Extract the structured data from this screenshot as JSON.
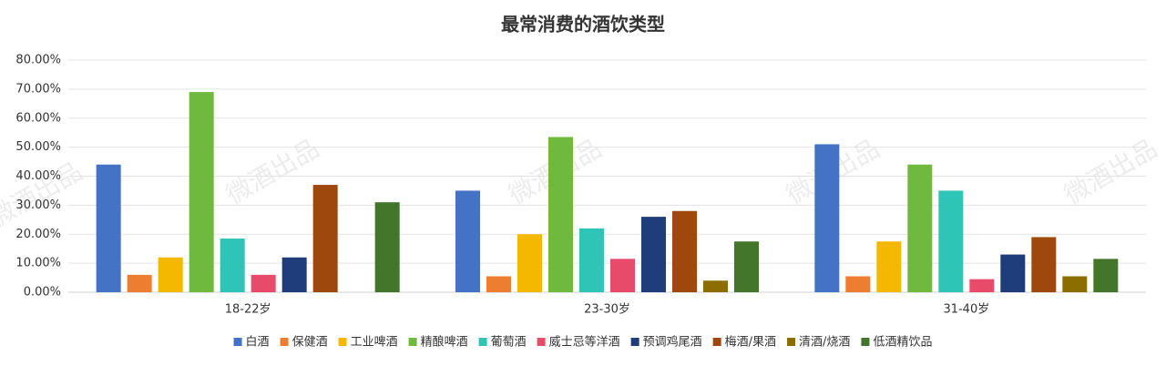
{
  "chart_data": {
    "type": "bar",
    "title": "最常消费的酒饮类型",
    "watermark": "微酒出品",
    "categories": [
      "18-22岁",
      "23-30岁",
      "31-40岁"
    ],
    "series": [
      {
        "name": "白酒",
        "color": "#4472c4",
        "values": [
          44,
          35,
          51
        ]
      },
      {
        "name": "保健酒",
        "color": "#ed7d31",
        "values": [
          6,
          5.5,
          5.5
        ]
      },
      {
        "name": "工业啤酒",
        "color": "#f5b800",
        "values": [
          12,
          20,
          17.5
        ]
      },
      {
        "name": "精酿啤酒",
        "color": "#70b93f",
        "values": [
          69,
          53.5,
          44
        ]
      },
      {
        "name": "葡萄酒",
        "color": "#2ec4b6",
        "values": [
          18.5,
          22,
          35
        ]
      },
      {
        "name": "威士忌等洋酒",
        "color": "#e84b6a",
        "values": [
          6,
          11.5,
          4.5
        ]
      },
      {
        "name": "预调鸡尾酒",
        "color": "#1f3d7a",
        "values": [
          12,
          26,
          13
        ]
      },
      {
        "name": "梅酒/果酒",
        "color": "#9e480e",
        "values": [
          37,
          28,
          19
        ]
      },
      {
        "name": "清酒/烧酒",
        "color": "#8c6d00",
        "values": [
          0,
          4,
          5.5
        ]
      },
      {
        "name": "低酒精饮品",
        "color": "#43752b",
        "values": [
          31,
          17.5,
          11.5
        ]
      }
    ],
    "ylim": [
      0,
      80
    ],
    "yticks": [
      {
        "value": 0,
        "label": "0.00%"
      },
      {
        "value": 10,
        "label": "10.00%"
      },
      {
        "value": 20,
        "label": "20.00%"
      },
      {
        "value": 30,
        "label": "30.00%"
      },
      {
        "value": 40,
        "label": "40.00%"
      },
      {
        "value": 50,
        "label": "50.00%"
      },
      {
        "value": 60,
        "label": "60.00%"
      },
      {
        "value": 70,
        "label": "70.00%"
      },
      {
        "value": 80,
        "label": "80.00%"
      }
    ],
    "grid": true
  }
}
